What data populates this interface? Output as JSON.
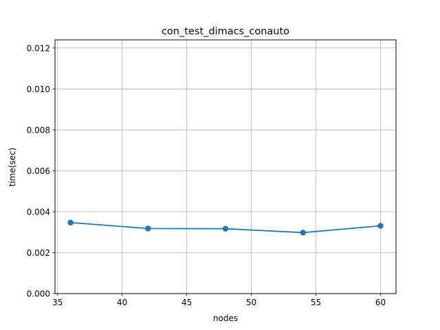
{
  "chart_data": {
    "type": "line",
    "title": "con_test_dimacs_conauto",
    "xlabel": "nodes",
    "ylabel": "time(sec)",
    "xlim": [
      34.8,
      61.2
    ],
    "ylim": [
      0.0,
      0.0124
    ],
    "grid": true,
    "x_ticks": [
      35,
      40,
      45,
      50,
      55,
      60
    ],
    "x_tick_labels": [
      "35",
      "40",
      "45",
      "50",
      "55",
      "60"
    ],
    "y_ticks": [
      0.0,
      0.002,
      0.004,
      0.006,
      0.008,
      0.01,
      0.012
    ],
    "y_tick_labels": [
      "0.000",
      "0.002",
      "0.004",
      "0.006",
      "0.008",
      "0.010",
      "0.012"
    ],
    "series": [
      {
        "name": "conauto",
        "color": "#1f77b4",
        "x": [
          36,
          42,
          48,
          54,
          60
        ],
        "y": [
          0.00347,
          0.00318,
          0.00317,
          0.00298,
          0.00331
        ]
      }
    ]
  }
}
